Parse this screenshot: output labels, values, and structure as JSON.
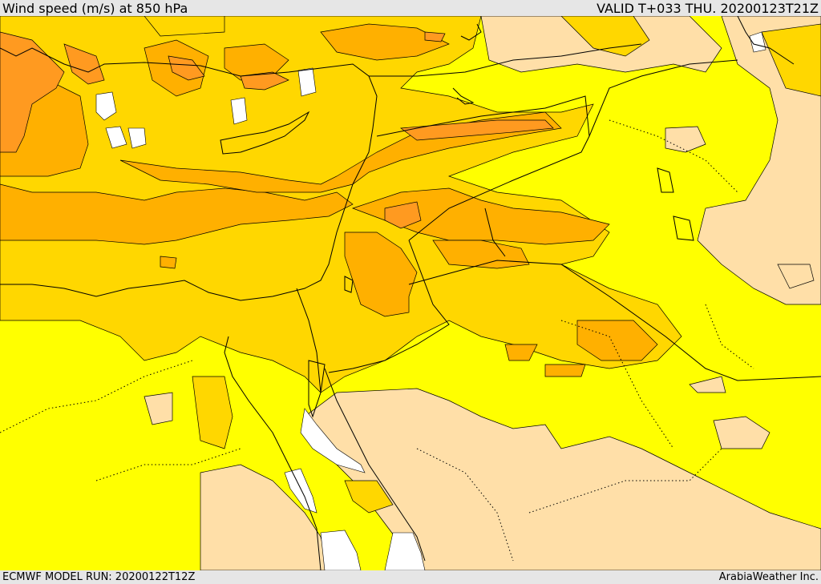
{
  "header": {
    "title": "Wind speed (m/s) at 850 hPa",
    "valid": "VALID T+033 THU. 20200123T21Z"
  },
  "footer": {
    "model_run": "ECMWF MODEL RUN: 20200122T12Z",
    "credit": "ArabiaWeather Inc."
  },
  "colors": {
    "speed_lowest": "#ffdfa8",
    "speed_low": "#ffff00",
    "speed_moderate": "#ffd700",
    "speed_high": "#ffb000",
    "speed_highest": "#ff9a20",
    "masked": "#ffffff",
    "coastline": "#000000",
    "border": "#000000"
  }
}
